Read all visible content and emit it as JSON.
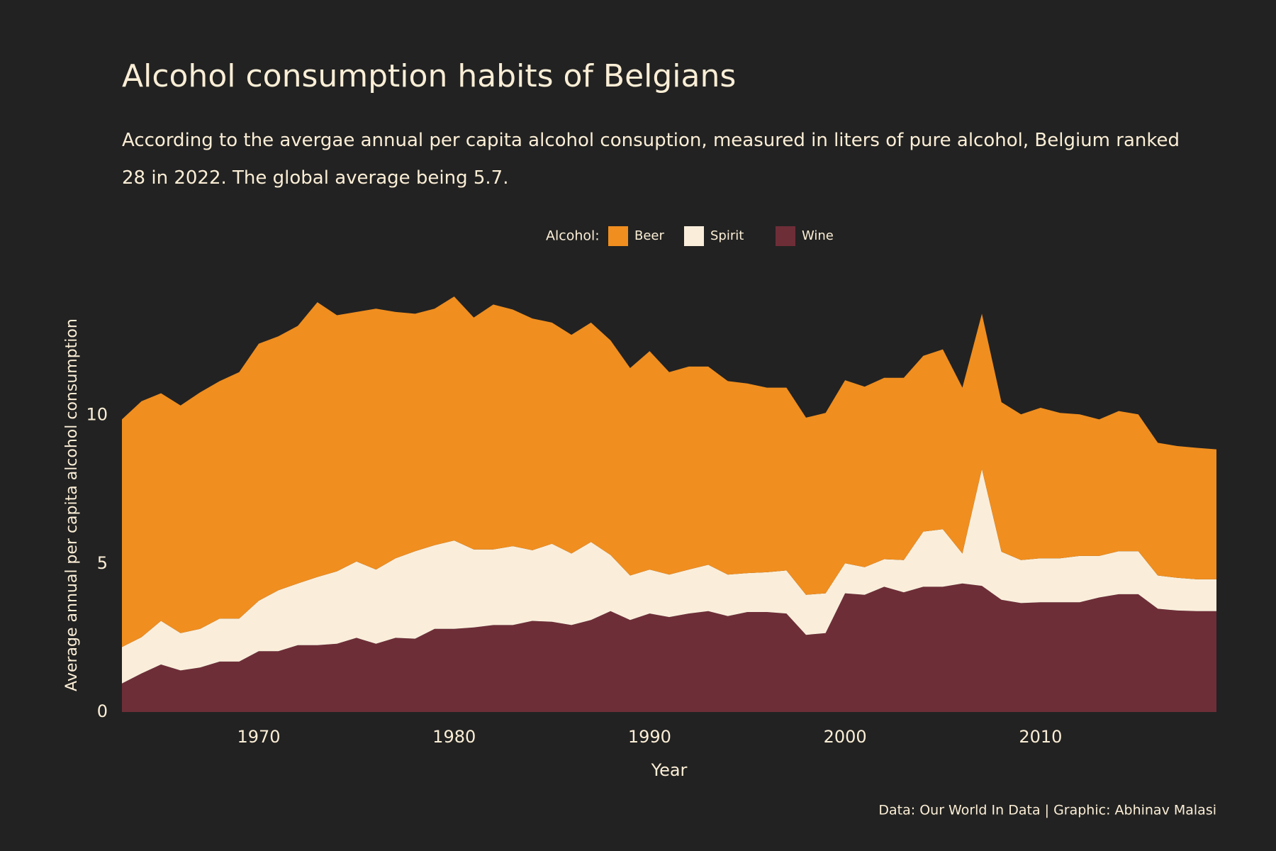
{
  "chart_data": {
    "type": "stacked-area",
    "title": "Alcohol consumption habits of Belgians",
    "subtitle": "According to the avergae annual per capita alcohol consuption, measured in liters of pure  alcohol, Belgium ranked 28 in 2022. The global average being 5.7.",
    "x_label": "Year",
    "y_label": "Average annual per capita alcohol consumption",
    "caption": "Data: Our World In Data | Graphic: Abhinav Malasi",
    "legend_title": "Alcohol:",
    "legend_position": "top",
    "x": [
      1963,
      1964,
      1965,
      1966,
      1967,
      1968,
      1969,
      1970,
      1971,
      1972,
      1973,
      1974,
      1975,
      1976,
      1977,
      1978,
      1979,
      1980,
      1981,
      1982,
      1983,
      1984,
      1985,
      1986,
      1987,
      1988,
      1989,
      1990,
      1991,
      1992,
      1993,
      1994,
      1995,
      1996,
      1997,
      1998,
      1999,
      2000,
      2001,
      2002,
      2003,
      2004,
      2005,
      2006,
      2007,
      2008,
      2009,
      2010,
      2011,
      2012,
      2013,
      2014,
      2015,
      2016,
      2017,
      2018,
      2019
    ],
    "xlim": [
      1963,
      2019
    ],
    "xticks": [
      1970,
      1980,
      1990,
      2000,
      2010
    ],
    "ylim": [
      0,
      14.6
    ],
    "yticks": [
      0,
      5,
      10
    ],
    "series": [
      {
        "name": "Beer",
        "color": "#f08e1f",
        "values": [
          7.67,
          7.95,
          7.67,
          7.67,
          7.97,
          8.0,
          8.3,
          8.66,
          8.56,
          8.68,
          9.26,
          8.63,
          8.41,
          8.79,
          8.3,
          8.0,
          7.97,
          8.22,
          7.81,
          8.25,
          7.97,
          7.81,
          7.45,
          7.37,
          7.39,
          7.23,
          6.99,
          7.36,
          6.82,
          6.84,
          6.68,
          6.52,
          6.39,
          6.22,
          6.16,
          5.97,
          6.08,
          6.17,
          6.08,
          6.11,
          6.14,
          5.92,
          6.06,
          5.59,
          5.23,
          5.04,
          4.91,
          5.07,
          4.9,
          4.77,
          4.6,
          4.72,
          4.61,
          4.47,
          4.44,
          4.43,
          4.38
        ]
      },
      {
        "name": "Spirit",
        "color": "#faeedb",
        "values": [
          1.23,
          1.22,
          1.47,
          1.26,
          1.3,
          1.45,
          1.45,
          1.7,
          2.05,
          2.08,
          2.3,
          2.44,
          2.57,
          2.5,
          2.68,
          2.95,
          2.82,
          2.98,
          2.63,
          2.55,
          2.66,
          2.38,
          2.63,
          2.41,
          2.63,
          1.89,
          1.5,
          1.48,
          1.43,
          1.48,
          1.56,
          1.4,
          1.31,
          1.34,
          1.45,
          1.35,
          1.34,
          1.01,
          0.93,
          0.93,
          1.09,
          1.86,
          1.94,
          1.01,
          3.94,
          1.62,
          1.45,
          1.48,
          1.48,
          1.56,
          1.4,
          1.45,
          1.45,
          1.12,
          1.1,
          1.07,
          1.07
        ]
      },
      {
        "name": "Wine",
        "color": "#6e2e38",
        "values": [
          0.96,
          1.3,
          1.6,
          1.4,
          1.5,
          1.7,
          1.7,
          2.05,
          2.05,
          2.25,
          2.25,
          2.3,
          2.5,
          2.3,
          2.5,
          2.47,
          2.8,
          2.8,
          2.85,
          2.93,
          2.93,
          3.07,
          3.04,
          2.93,
          3.1,
          3.4,
          3.1,
          3.32,
          3.2,
          3.32,
          3.4,
          3.23,
          3.37,
          3.37,
          3.32,
          2.6,
          2.66,
          4.0,
          3.95,
          4.22,
          4.03,
          4.22,
          4.22,
          4.33,
          4.25,
          3.78,
          3.67,
          3.7,
          3.7,
          3.7,
          3.86,
          3.97,
          3.97,
          3.48,
          3.42,
          3.4,
          3.4
        ]
      }
    ]
  }
}
